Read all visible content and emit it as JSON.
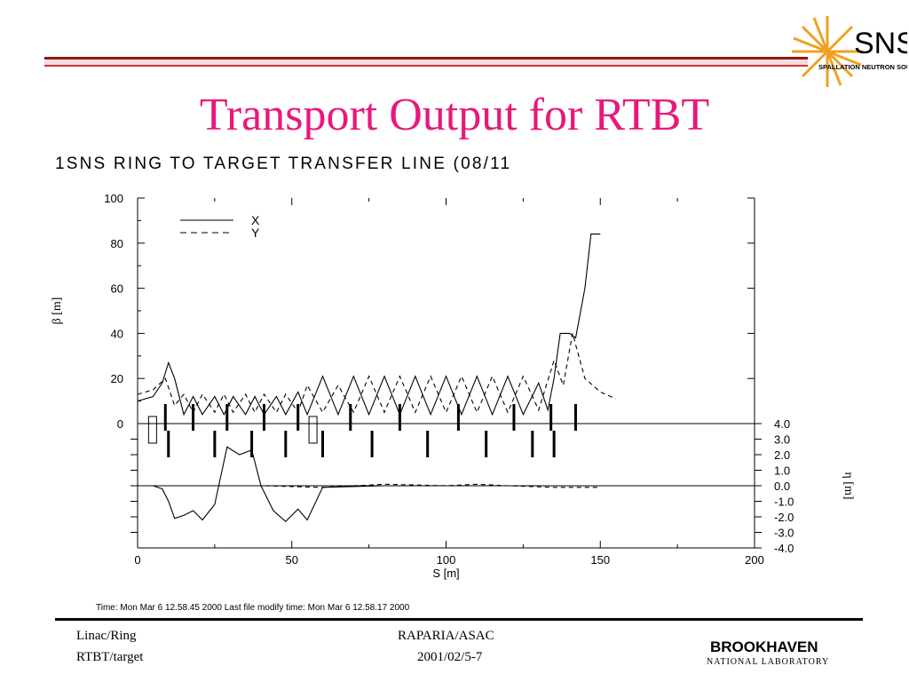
{
  "slide": {
    "title": "Transport Output for RTBT",
    "logo_top_text": "SNS",
    "logo_top_subtext": "SPALLATION NEUTRON SOURCE",
    "footer_left_line1": "Linac/Ring",
    "footer_left_line2": "RTBT/target",
    "footer_center_line1": "RAPARIA/ASAC",
    "footer_center_line2": "2001/02/5-7",
    "logo_bottom_line1": "BROOKHAVEN",
    "logo_bottom_line2": "NATIONAL LABORATORY",
    "colors": {
      "title": "#e8187a",
      "topbar_dark": "#8b1a1a",
      "topbar_light": "#cc3333"
    }
  },
  "chart_data": {
    "type": "line",
    "title": "1SNS RING TO TARGET TRANSFER LINE (08/11",
    "xlabel": "S [m]",
    "ylabel": "β [m]",
    "ylabel_right": "η [m]",
    "xlim": [
      0,
      200
    ],
    "ylim": [
      0,
      100
    ],
    "ylim_right": [
      -4.0,
      4.0
    ],
    "x_ticks": [
      "0",
      "50",
      "100",
      "150",
      "200"
    ],
    "y_ticks": [
      "0",
      "20",
      "40",
      "60",
      "80",
      "100"
    ],
    "y_ticks_right": [
      "4.0",
      "3.0",
      "2.0",
      "1.0",
      "0.0",
      "-1.0",
      "-2.0",
      "-3.0",
      "-4.0"
    ],
    "legend": {
      "position": "top-left",
      "entries": [
        "X",
        "Y"
      ]
    },
    "grid": false,
    "timestamp": "Time: Mon Mar  6 12.58.45 2000  Last file modify time: Mon Mar  6 12.58.17 2000",
    "series": [
      {
        "name": "X",
        "panel": "beta",
        "style": "solid",
        "x": [
          0,
          5,
          8,
          10,
          12,
          15,
          18,
          21,
          25,
          28,
          31,
          35,
          38,
          41,
          45,
          48,
          52,
          55,
          60,
          65,
          70,
          75,
          80,
          85,
          90,
          95,
          100,
          105,
          110,
          115,
          120,
          125,
          130,
          133,
          135,
          137,
          140,
          142,
          145,
          147,
          150
        ],
        "y": [
          10,
          12,
          18,
          27,
          20,
          4,
          12,
          4,
          12,
          4,
          12,
          4,
          12,
          4,
          12,
          4,
          14,
          4,
          21,
          4,
          21,
          4,
          21,
          4,
          21,
          4,
          21,
          4,
          21,
          4,
          21,
          4,
          18,
          6,
          20,
          40,
          40,
          38,
          60,
          84,
          84
        ]
      },
      {
        "name": "Y",
        "panel": "beta",
        "style": "dashed",
        "x": [
          0,
          5,
          9,
          12,
          15,
          18,
          21,
          25,
          28,
          31,
          35,
          38,
          41,
          45,
          48,
          52,
          55,
          60,
          65,
          70,
          75,
          80,
          85,
          90,
          95,
          100,
          105,
          110,
          115,
          120,
          125,
          130,
          135,
          138,
          141,
          145,
          150,
          155
        ],
        "y": [
          13,
          15,
          20,
          8,
          13,
          5,
          13,
          5,
          13,
          5,
          13,
          5,
          13,
          5,
          13,
          5,
          17,
          5,
          17,
          5,
          21,
          5,
          21,
          5,
          21,
          5,
          21,
          5,
          21,
          5,
          21,
          6,
          28,
          17,
          40,
          20,
          14,
          11
        ]
      },
      {
        "name": "η",
        "panel": "dispersion",
        "style": "solid",
        "x": [
          0,
          5,
          8,
          10,
          12,
          15,
          18,
          21,
          25,
          29,
          33,
          37,
          40,
          44,
          48,
          52,
          55,
          60,
          80,
          100,
          120,
          140,
          145,
          150
        ],
        "y": [
          0,
          0,
          -0.2,
          -1.0,
          -2.1,
          -1.9,
          -1.6,
          -2.2,
          -1.2,
          2.5,
          2.0,
          2.3,
          0.0,
          -1.6,
          -2.3,
          -1.5,
          -2.2,
          -0.1,
          0.0,
          0.0,
          0.0,
          0.0,
          0.0,
          0.0
        ]
      },
      {
        "name": "η'",
        "panel": "dispersion",
        "style": "dashed",
        "x": [
          0,
          10,
          20,
          40,
          60,
          80,
          100,
          110,
          120,
          135,
          150
        ],
        "y": [
          0.0,
          0.0,
          0.0,
          0.0,
          -0.1,
          0.1,
          0.0,
          0.1,
          0.0,
          -0.1,
          -0.1
        ]
      }
    ],
    "elements": {
      "bends_x": [
        5,
        57
      ],
      "quads_x": [
        9,
        10,
        18,
        25,
        29,
        37,
        41,
        48,
        52,
        60,
        69,
        76,
        85,
        94,
        104,
        113,
        122,
        128,
        134,
        135,
        142
      ]
    }
  }
}
